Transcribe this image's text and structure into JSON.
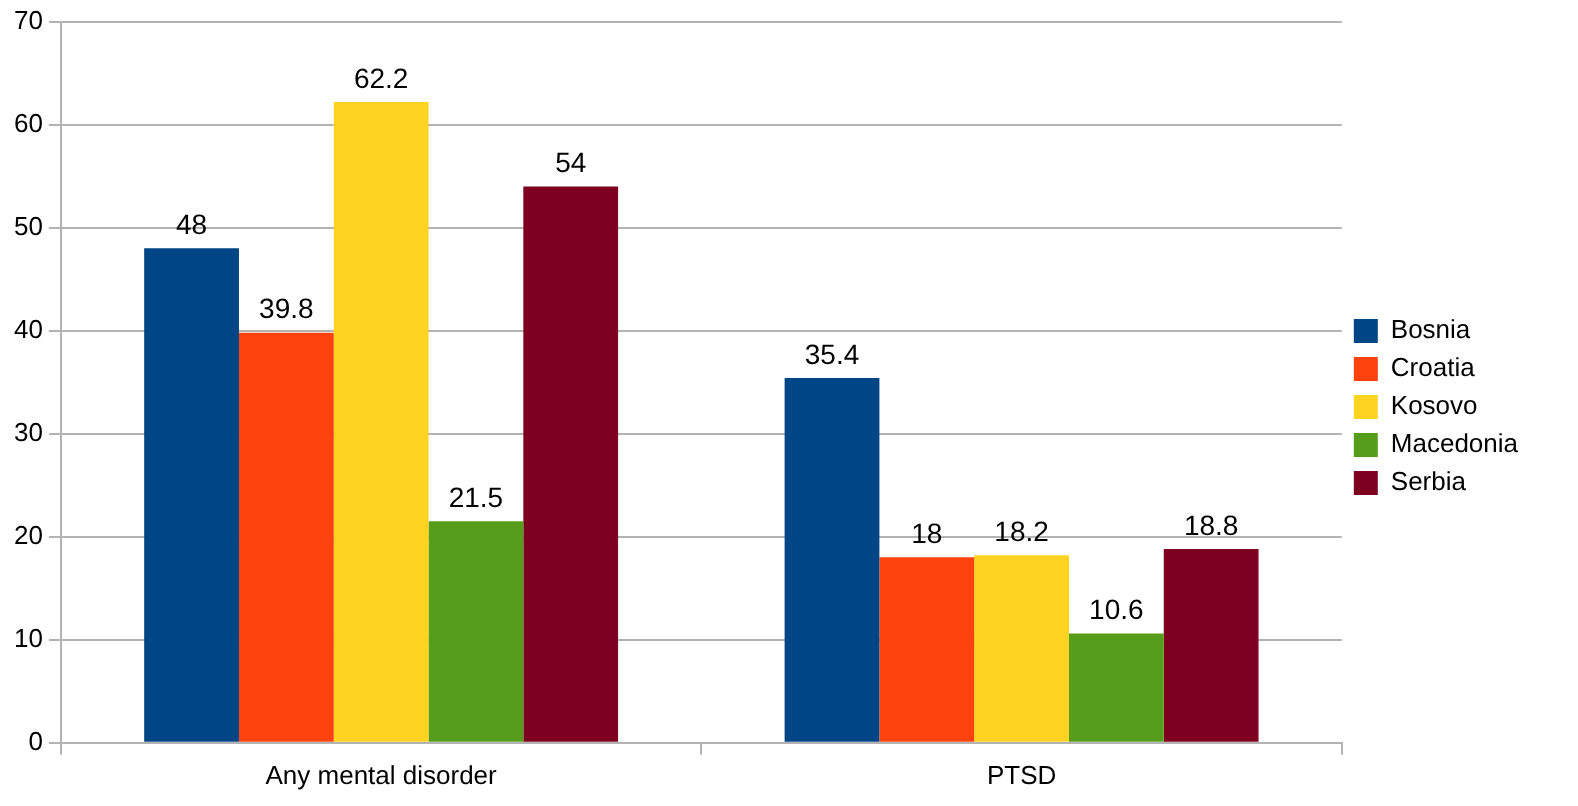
{
  "chart_data": {
    "type": "bar",
    "categories": [
      "Any mental disorder",
      "PTSD"
    ],
    "series": [
      {
        "name": "Bosnia",
        "color": "#004586",
        "values": [
          48,
          35.4
        ]
      },
      {
        "name": "Croatia",
        "color": "#ff420e",
        "values": [
          39.8,
          18
        ]
      },
      {
        "name": "Kosovo",
        "color": "#ffd320",
        "values": [
          62.2,
          18.2
        ]
      },
      {
        "name": "Macedonia",
        "color": "#579d1c",
        "values": [
          21.5,
          10.6
        ]
      },
      {
        "name": "Serbia",
        "color": "#7e0021",
        "values": [
          54,
          18.8
        ]
      }
    ],
    "ylim": [
      0,
      70
    ],
    "yticks": [
      0,
      10,
      20,
      30,
      40,
      50,
      60,
      70
    ],
    "grid": "y",
    "legend": "right",
    "data_labels": true
  }
}
